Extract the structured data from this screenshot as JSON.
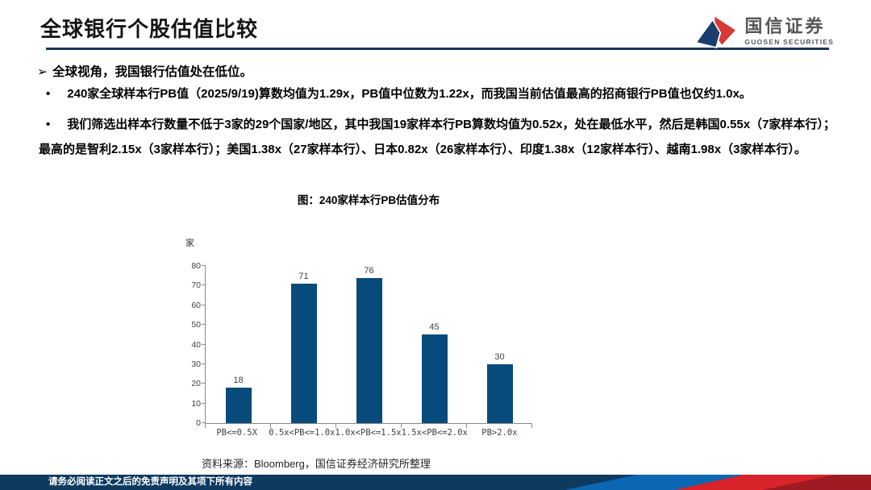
{
  "header": {
    "title": "全球银行个股估值比较",
    "logo_cn": "国信证券",
    "logo_en": "GUOSEN SECURITIES"
  },
  "content": {
    "lead": "全球视角，我国银行估值处在低位。",
    "bullets": [
      "240家全球样本行PB值（2025/9/19)算数均值为1.29x，PB值中位数为1.22x，而我国当前估值最高的招商银行PB值也仅约1.0x。",
      "我们筛选出样本行数量不低于3家的29个国家/地区，其中我国19家样本行PB算数均值为0.52x，处在最低水平，然后是韩国0.55x（7家样本行）；最高的是智利2.15x（3家样本行）；美国1.38x（27家样本行）、日本0.82x（26家样本行）、印度1.38x（12家样本行）、越南1.98x（3家样本行）。"
    ]
  },
  "chart_data": {
    "type": "bar",
    "title": "图：240家样本行PB估值分布",
    "categories": [
      "PB<=0.5X",
      "0.5x<PB<=1.0x",
      "1.0x<PB<=1.5x",
      "1.5x<PB<=2.0x",
      "PB>2.0x"
    ],
    "values": [
      18,
      71,
      76,
      45,
      30
    ],
    "ylabel": "家",
    "xlabel": "",
    "ylim": [
      0,
      80
    ],
    "yticks": [
      0,
      10,
      20,
      30,
      40,
      50,
      60,
      70,
      80
    ],
    "grid": false,
    "legend": false,
    "data_labels": true,
    "bar_color": "#074A7C"
  },
  "figure": {
    "source_note": "资料来源：Bloomberg，国信证券经济研究所整理"
  },
  "footer": {
    "disclaimer": "请务必阅读正文之后的免责声明及其项下所有内容"
  },
  "colors": {
    "title_rule_navy": "#17375D",
    "bar_navy": "#074A7C",
    "footer_navy": "#0E3A5F",
    "footer_blue": "#0B67B2",
    "footer_red": "#D8232B",
    "footer_dark_red": "#9E1B23",
    "logo_red": "#D93A35",
    "logo_blue": "#1A3E6E",
    "logo_text_gray": "#53565A"
  }
}
